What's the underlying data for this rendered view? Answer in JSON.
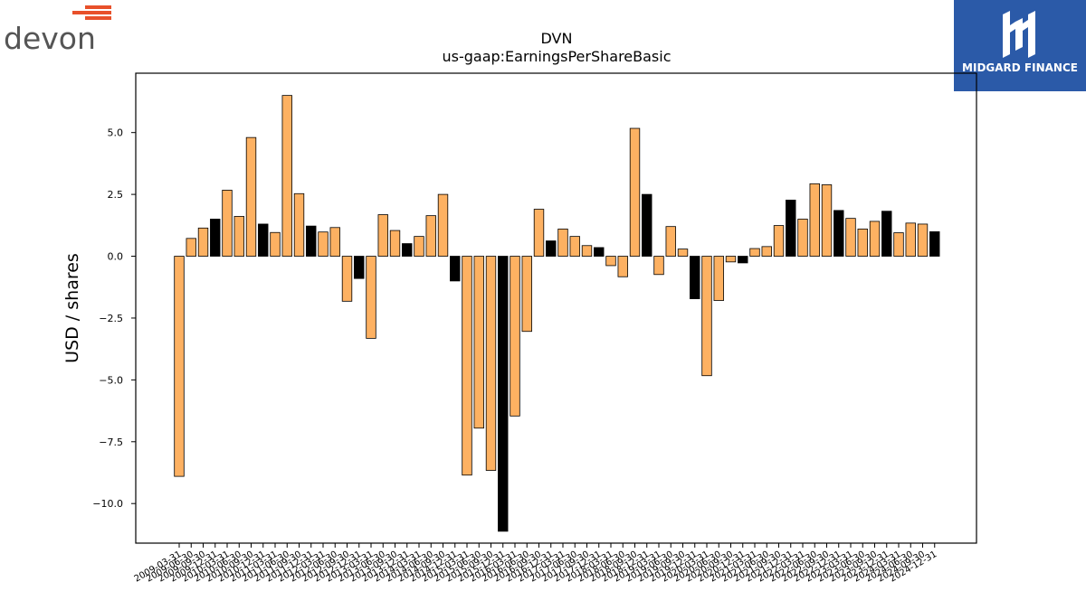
{
  "logos": {
    "left": {
      "text": "devon",
      "icon": "devon-stripes-logo",
      "color": "#555555",
      "accent": "#e8502a"
    },
    "right": {
      "text": "MIDGARD FINANCE",
      "icon": "midgard-m-logo",
      "background": "#2b5aa8"
    }
  },
  "chart_data": {
    "type": "bar",
    "title": "DVN",
    "subtitle": "us-gaap:EarningsPerShareBasic",
    "ylabel": "USD / shares",
    "xlabel": "",
    "ylim": [
      -11.6,
      7.4
    ],
    "yticks": [
      5.0,
      2.5,
      0.0,
      -2.5,
      -5.0,
      -7.5,
      -10.0
    ],
    "ytick_labels": [
      "5.0",
      "2.5",
      "0.0",
      "−2.5",
      "−5.0",
      "−7.5",
      "−10.0"
    ],
    "grid": false,
    "colors": {
      "quarter": "#fdb162",
      "annual": "#000000",
      "edge": "#000000"
    },
    "categories": [
      "2009-03-31",
      "2009-06-30",
      "2009-09-30",
      "2009-12-31",
      "2010-03-31",
      "2010-06-30",
      "2010-09-30",
      "2010-12-31",
      "2011-03-31",
      "2011-06-30",
      "2011-09-30",
      "2011-12-31",
      "2012-03-31",
      "2012-06-30",
      "2012-09-30",
      "2012-12-31",
      "2013-03-31",
      "2013-06-30",
      "2013-09-30",
      "2013-12-31",
      "2014-03-31",
      "2014-06-30",
      "2014-09-30",
      "2014-12-31",
      "2015-03-31",
      "2015-06-30",
      "2015-09-30",
      "2015-12-31",
      "2016-03-31",
      "2016-06-30",
      "2016-09-30",
      "2016-12-31",
      "2017-03-31",
      "2017-06-30",
      "2017-09-30",
      "2017-12-31",
      "2018-03-31",
      "2018-06-30",
      "2018-09-30",
      "2018-12-31",
      "2019-03-31",
      "2019-06-30",
      "2019-09-30",
      "2019-12-31",
      "2020-03-31",
      "2020-06-30",
      "2020-09-30",
      "2020-12-31",
      "2021-03-31",
      "2021-06-30",
      "2021-09-30",
      "2021-12-31",
      "2022-03-31",
      "2022-06-30",
      "2022-09-30",
      "2022-12-31",
      "2023-03-31",
      "2023-06-30",
      "2023-09-30",
      "2023-12-31",
      "2024-03-31",
      "2024-06-30",
      "2024-09-30",
      "2024-12-31"
    ],
    "values": [
      -8.9,
      0.72,
      1.14,
      1.5,
      2.67,
      1.61,
      4.8,
      1.3,
      0.96,
      6.5,
      2.53,
      1.22,
      0.98,
      1.16,
      -1.82,
      -0.9,
      -3.32,
      1.68,
      1.04,
      0.51,
      0.8,
      1.64,
      2.5,
      -1.0,
      -8.85,
      -6.95,
      -8.66,
      -11.12,
      -6.46,
      -3.04,
      1.9,
      0.62,
      1.1,
      0.8,
      0.43,
      0.35,
      -0.38,
      -0.83,
      5.17,
      2.5,
      -0.74,
      1.2,
      0.29,
      -1.72,
      -4.83,
      -1.79,
      -0.23,
      -0.27,
      0.31,
      0.39,
      1.24,
      2.27,
      1.5,
      2.93,
      2.89,
      1.85,
      1.53,
      1.1,
      1.41,
      1.82,
      0.95,
      1.34,
      1.3,
      0.99
    ],
    "annual": [
      3,
      7,
      11,
      15,
      19,
      23,
      27,
      31,
      35,
      39,
      43,
      47,
      51,
      55,
      59,
      63
    ]
  }
}
